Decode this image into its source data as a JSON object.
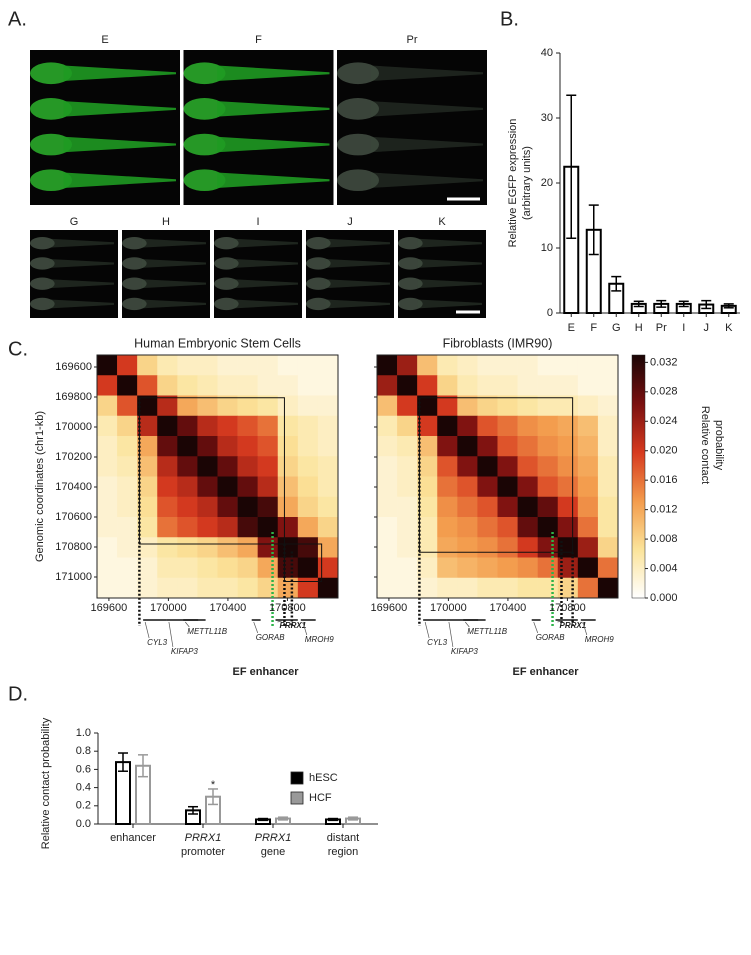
{
  "panel_labels": [
    "A.",
    "B.",
    "C.",
    "D."
  ],
  "images": {
    "top": [
      "E",
      "F",
      "Pr"
    ],
    "bottom": [
      "G",
      "H",
      "I",
      "J",
      "K"
    ]
  },
  "chart_data": [
    {
      "type": "bar",
      "categories": [
        "E",
        "F",
        "G",
        "H",
        "Pr",
        "I",
        "J",
        "K"
      ],
      "values": [
        22.5,
        12.8,
        4.5,
        1.4,
        1.4,
        1.4,
        1.3,
        1.1
      ],
      "errors": [
        11,
        3.8,
        1.1,
        0.4,
        0.5,
        0.4,
        0.6,
        0.3
      ],
      "color": "#ffffff",
      "edgecolor": "#000000",
      "ylabel": [
        "Relative EGFP expression",
        "(arbitrary units)"
      ],
      "ylim": [
        0,
        40
      ],
      "yticks": [
        0,
        10,
        20,
        30,
        40
      ]
    },
    {
      "type": "heatmap",
      "ylabel": "Genomic coordinates (chr1-kb)",
      "xlim": [
        169520,
        171140
      ],
      "ylim": [
        169520,
        171140
      ],
      "xticks": [
        169600,
        170000,
        170400,
        170800
      ],
      "yticks": [
        169600,
        169800,
        170000,
        170200,
        170400,
        170600,
        170800,
        171000
      ],
      "panels": [
        {
          "title": "Human Embryonic Stem Cells",
          "tads": [
            [
              169805,
              170780
            ],
            [
              170780,
              171030
            ]
          ],
          "boundaries": [
            169805,
            170780,
            170830
          ],
          "matrix": [
            [
              0.034,
              0.02,
              0.008,
              0.005,
              0.004,
              0.004,
              0.003,
              0.003,
              0.003,
              0.002,
              0.002,
              0.002
            ],
            [
              0.02,
              0.034,
              0.018,
              0.008,
              0.006,
              0.005,
              0.004,
              0.004,
              0.003,
              0.003,
              0.002,
              0.002
            ],
            [
              0.008,
              0.018,
              0.034,
              0.022,
              0.012,
              0.01,
              0.008,
              0.007,
              0.006,
              0.004,
              0.003,
              0.003
            ],
            [
              0.005,
              0.008,
              0.022,
              0.034,
              0.028,
              0.022,
              0.02,
              0.018,
              0.016,
              0.006,
              0.005,
              0.004
            ],
            [
              0.004,
              0.006,
              0.012,
              0.028,
              0.034,
              0.028,
              0.022,
              0.02,
              0.018,
              0.007,
              0.005,
              0.004
            ],
            [
              0.004,
              0.005,
              0.01,
              0.022,
              0.028,
              0.034,
              0.028,
              0.022,
              0.02,
              0.008,
              0.006,
              0.005
            ],
            [
              0.003,
              0.004,
              0.008,
              0.02,
              0.022,
              0.028,
              0.034,
              0.028,
              0.022,
              0.01,
              0.007,
              0.005
            ],
            [
              0.003,
              0.004,
              0.007,
              0.018,
              0.02,
              0.022,
              0.028,
              0.034,
              0.03,
              0.012,
              0.008,
              0.006
            ],
            [
              0.003,
              0.003,
              0.006,
              0.016,
              0.018,
              0.02,
              0.022,
              0.03,
              0.034,
              0.026,
              0.012,
              0.008
            ],
            [
              0.002,
              0.003,
              0.004,
              0.006,
              0.007,
              0.008,
              0.01,
              0.012,
              0.026,
              0.034,
              0.03,
              0.012
            ],
            [
              0.002,
              0.002,
              0.003,
              0.005,
              0.005,
              0.006,
              0.007,
              0.008,
              0.012,
              0.03,
              0.034,
              0.02
            ],
            [
              0.002,
              0.002,
              0.003,
              0.004,
              0.004,
              0.005,
              0.005,
              0.006,
              0.008,
              0.012,
              0.02,
              0.034
            ]
          ]
        },
        {
          "title": "Fibroblasts (IMR90)",
          "tads": [
            [
              169805,
              170835
            ]
          ],
          "boundaries": [
            169805,
            170760,
            170835
          ],
          "matrix": [
            [
              0.034,
              0.024,
              0.01,
              0.005,
              0.004,
              0.003,
              0.003,
              0.003,
              0.002,
              0.002,
              0.002,
              0.002
            ],
            [
              0.024,
              0.034,
              0.02,
              0.008,
              0.005,
              0.004,
              0.004,
              0.003,
              0.003,
              0.003,
              0.002,
              0.002
            ],
            [
              0.01,
              0.02,
              0.034,
              0.02,
              0.01,
              0.008,
              0.007,
              0.006,
              0.005,
              0.005,
              0.004,
              0.003
            ],
            [
              0.005,
              0.008,
              0.02,
              0.034,
              0.026,
              0.018,
              0.016,
              0.014,
              0.013,
              0.012,
              0.01,
              0.004
            ],
            [
              0.004,
              0.005,
              0.01,
              0.026,
              0.034,
              0.026,
              0.018,
              0.016,
              0.014,
              0.013,
              0.011,
              0.004
            ],
            [
              0.003,
              0.004,
              0.008,
              0.018,
              0.026,
              0.034,
              0.026,
              0.018,
              0.016,
              0.014,
              0.012,
              0.005
            ],
            [
              0.003,
              0.004,
              0.007,
              0.016,
              0.018,
              0.026,
              0.034,
              0.026,
              0.018,
              0.016,
              0.013,
              0.005
            ],
            [
              0.003,
              0.003,
              0.006,
              0.014,
              0.016,
              0.018,
              0.026,
              0.034,
              0.028,
              0.02,
              0.014,
              0.006
            ],
            [
              0.002,
              0.003,
              0.005,
              0.013,
              0.014,
              0.016,
              0.018,
              0.028,
              0.034,
              0.026,
              0.016,
              0.006
            ],
            [
              0.002,
              0.003,
              0.005,
              0.012,
              0.013,
              0.014,
              0.016,
              0.02,
              0.026,
              0.034,
              0.024,
              0.008
            ],
            [
              0.002,
              0.002,
              0.004,
              0.01,
              0.011,
              0.012,
              0.013,
              0.014,
              0.016,
              0.024,
              0.034,
              0.016
            ],
            [
              0.002,
              0.002,
              0.003,
              0.004,
              0.004,
              0.005,
              0.005,
              0.006,
              0.006,
              0.008,
              0.016,
              0.034
            ]
          ]
        }
      ],
      "genes": [
        {
          "name": "CYL3",
          "start": 169830,
          "end": 169990
        },
        {
          "name": "KIFAP3",
          "start": 169990,
          "end": 170250
        },
        {
          "name": "METTL11B",
          "start": 170100,
          "end": 170200
        },
        {
          "name": "GORAB",
          "start": 170560,
          "end": 170620
        },
        {
          "name": "PRRX1",
          "start": 170720,
          "end": 170870
        },
        {
          "name": "MROH9",
          "start": 170890,
          "end": 170990
        }
      ],
      "enhancer": {
        "label": "EF enhancer",
        "position": 170700,
        "color": "#2db34a"
      },
      "colorbar": {
        "label": [
          "Relative contact",
          "probability"
        ],
        "lim": [
          0,
          0.033
        ],
        "colormap": [
          "#ffffff",
          "#fbe39a",
          "#f39b4c",
          "#d63a1f",
          "#7a1010",
          "#1a0505"
        ],
        "ticks": [
          {
            "value": 0,
            "label": "0.000"
          },
          {
            "value": 0.004,
            "label": "0.004"
          },
          {
            "value": 0.008,
            "label": "0.008"
          },
          {
            "value": 0.012,
            "label": "0.012"
          },
          {
            "value": 0.016,
            "label": "0.016"
          },
          {
            "value": 0.02,
            "label": "0.020"
          },
          {
            "value": 0.024,
            "label": "0.024"
          },
          {
            "value": 0.028,
            "label": "0.028"
          },
          {
            "value": 0.032,
            "label": "0.032"
          }
        ]
      }
    },
    {
      "type": "grouped_bar",
      "categories": [
        [
          "enhancer"
        ],
        [
          "PRRX1",
          "promoter"
        ],
        [
          "PRRX1",
          "gene"
        ],
        [
          "distant",
          "region"
        ]
      ],
      "series": [
        {
          "name": "hESC",
          "color": "#000000",
          "values": [
            0.68,
            0.15,
            0.05,
            0.05
          ],
          "errors": [
            0.1,
            0.04,
            0.01,
            0.01
          ]
        },
        {
          "name": "HCF",
          "color": "#999999",
          "values": [
            0.64,
            0.3,
            0.06,
            0.06
          ],
          "errors": [
            0.12,
            0.085,
            0.015,
            0.015
          ]
        }
      ],
      "annotations": [
        {
          "text": "*",
          "series": 1,
          "category": 1,
          "y": 0.43
        }
      ],
      "ylabel": "Relative contact probability",
      "ylim": [
        0,
        1
      ],
      "yticks": [
        {
          "value": 0,
          "label": "0.0"
        },
        0.2,
        0.4,
        0.6,
        0.8,
        {
          "value": 1,
          "label": "1.0"
        }
      ]
    }
  ]
}
